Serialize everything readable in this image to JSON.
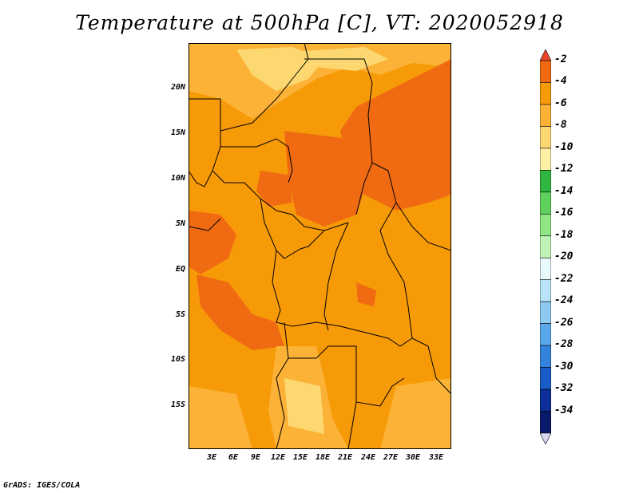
{
  "title": "Temperature at 500hPa [C], VT: 2020052918",
  "credit": "GrADS: IGES/COLA",
  "map": {
    "y_labels": [
      "20N",
      "15N",
      "10N",
      "5N",
      "EQ",
      "5S",
      "10S",
      "15S"
    ],
    "x_labels": [
      "3E",
      "6E",
      "9E",
      "12E",
      "15E",
      "18E",
      "21E",
      "24E",
      "27E",
      "30E",
      "33E"
    ]
  },
  "colorbar": {
    "labels": [
      "-2",
      "-4",
      "-6",
      "-8",
      "-10",
      "-12",
      "-14",
      "-16",
      "-18",
      "-20",
      "-22",
      "-24",
      "-26",
      "-28",
      "-30",
      "-32",
      "-34"
    ],
    "colors": [
      "#e8452a",
      "#f06a12",
      "#f79a08",
      "#fbb236",
      "#fdd870",
      "#fff0a8",
      "#2fb740",
      "#5fd25d",
      "#8ee684",
      "#c0f4b7",
      "#e8fafc",
      "#b9e3f6",
      "#8ec9f0",
      "#5aa7ea",
      "#3383dd",
      "#1a5cc6",
      "#0c2e99",
      "#081a6a",
      "#d8d8f4"
    ]
  }
}
